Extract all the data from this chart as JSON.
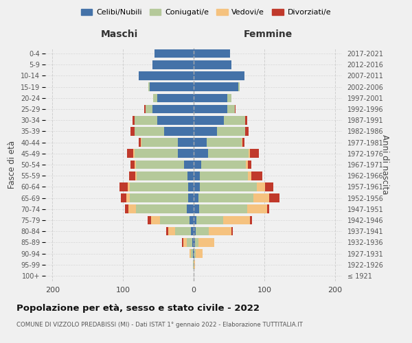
{
  "age_groups": [
    "100+",
    "95-99",
    "90-94",
    "85-89",
    "80-84",
    "75-79",
    "70-74",
    "65-69",
    "60-64",
    "55-59",
    "50-54",
    "45-49",
    "40-44",
    "35-39",
    "30-34",
    "25-29",
    "20-24",
    "15-19",
    "10-14",
    "5-9",
    "0-4"
  ],
  "birth_years": [
    "≤ 1921",
    "1922-1926",
    "1927-1931",
    "1932-1936",
    "1937-1941",
    "1942-1946",
    "1947-1951",
    "1952-1956",
    "1957-1961",
    "1962-1966",
    "1967-1971",
    "1972-1976",
    "1977-1981",
    "1982-1986",
    "1987-1991",
    "1992-1996",
    "1997-2001",
    "2002-2006",
    "2007-2011",
    "2012-2016",
    "2017-2021"
  ],
  "maschi": {
    "celibi": [
      0,
      0,
      1,
      2,
      4,
      6,
      10,
      8,
      8,
      9,
      14,
      22,
      22,
      42,
      52,
      58,
      52,
      62,
      78,
      58,
      55
    ],
    "coniugati": [
      0,
      1,
      3,
      8,
      22,
      42,
      72,
      82,
      82,
      72,
      68,
      62,
      52,
      42,
      32,
      10,
      5,
      2,
      0,
      0,
      0
    ],
    "vedovi": [
      0,
      0,
      2,
      5,
      10,
      12,
      10,
      5,
      3,
      2,
      2,
      2,
      1,
      0,
      0,
      0,
      0,
      0,
      0,
      0,
      0
    ],
    "divorziati": [
      0,
      0,
      0,
      2,
      3,
      5,
      5,
      8,
      12,
      8,
      5,
      8,
      3,
      5,
      3,
      2,
      0,
      0,
      0,
      0,
      0
    ]
  },
  "femmine": {
    "nubili": [
      0,
      0,
      1,
      2,
      3,
      4,
      8,
      7,
      9,
      9,
      11,
      20,
      18,
      33,
      43,
      48,
      48,
      63,
      72,
      53,
      52
    ],
    "coniugate": [
      0,
      0,
      2,
      5,
      18,
      38,
      68,
      78,
      80,
      68,
      63,
      58,
      50,
      40,
      30,
      10,
      5,
      2,
      0,
      0,
      0
    ],
    "vedove": [
      0,
      2,
      10,
      22,
      32,
      38,
      28,
      22,
      12,
      5,
      3,
      2,
      1,
      0,
      0,
      0,
      0,
      0,
      0,
      0,
      0
    ],
    "divorziate": [
      0,
      0,
      0,
      0,
      2,
      3,
      3,
      15,
      12,
      15,
      5,
      12,
      3,
      5,
      3,
      1,
      0,
      0,
      0,
      0,
      0
    ]
  },
  "colors": {
    "celibi": "#4472a8",
    "coniugati": "#b5c99a",
    "vedovi": "#f5c27f",
    "divorziati": "#c0392b"
  },
  "title": "Popolazione per età, sesso e stato civile - 2022",
  "subtitle": "COMUNE DI VIZZOLO PREDABISSI (MI) - Dati ISTAT 1° gennaio 2022 - Elaborazione TUTTITALIA.IT",
  "xlabel_maschi": "Maschi",
  "xlabel_femmine": "Femmine",
  "ylabel": "Fasce di età",
  "ylabel2": "Anni di nascita",
  "xlim": 210,
  "bg_color": "#f0f0f0",
  "legend_labels": [
    "Celibi/Nubili",
    "Coniugati/e",
    "Vedovi/e",
    "Divorziati/e"
  ]
}
